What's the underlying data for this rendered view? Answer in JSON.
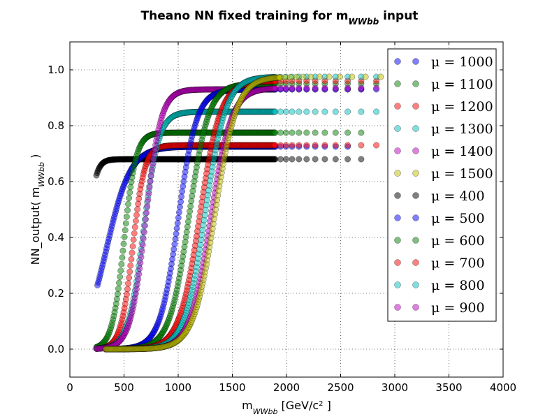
{
  "chart_data": {
    "type": "scatter",
    "title": "Theano NN fixed training for m",
    "title_sub": "WWbb",
    "title_suffix": " input",
    "xlabel": "m",
    "xlabel_sub": "WWbb",
    "xlabel_suffix": " [GeV/c",
    "xlabel_sup": "2",
    "xlabel_end": " ]",
    "ylabel": "NN_output( m",
    "ylabel_sub": "WWbb",
    "ylabel_suffix": " )",
    "xlim": [
      0,
      4000
    ],
    "ylim": [
      -0.1,
      1.1
    ],
    "xticks": [
      "0",
      "500",
      "1000",
      "1500",
      "2000",
      "2500",
      "3000",
      "3500",
      "4000"
    ],
    "yticks": [
      "0.0",
      "0.2",
      "0.4",
      "0.6",
      "0.8",
      "1.0"
    ],
    "grid": true,
    "legend_position": "upper-right",
    "series": [
      {
        "name": "μ = 1000",
        "color": "#0000ff",
        "mid": 1000,
        "plateau": 0.93,
        "width": 85,
        "xmin": 330,
        "xmax": 3050,
        "floor": 0.0
      },
      {
        "name": "μ = 1100",
        "color": "#008000",
        "mid": 1100,
        "plateau": 0.95,
        "width": 90,
        "xmin": 330,
        "xmax": 3000,
        "floor": 0.0
      },
      {
        "name": "μ = 1200",
        "color": "#ff0000",
        "mid": 1200,
        "plateau": 0.96,
        "width": 95,
        "xmin": 330,
        "xmax": 3050,
        "floor": 0.0
      },
      {
        "name": "μ = 1300",
        "color": "#00bfbf",
        "mid": 1250,
        "plateau": 0.975,
        "width": 95,
        "xmin": 330,
        "xmax": 3300,
        "floor": 0.0
      },
      {
        "name": "μ = 1400",
        "color": "#bf00bf",
        "mid": 1300,
        "plateau": 0.935,
        "width": 95,
        "xmin": 330,
        "xmax": 3400,
        "floor": 0.0
      },
      {
        "name": "μ = 1500",
        "color": "#bfbf00",
        "mid": 1340,
        "plateau": 0.975,
        "width": 100,
        "xmin": 330,
        "xmax": 3900,
        "floor": 0.0
      },
      {
        "name": "μ = 400",
        "color": "#000000",
        "mid": 150,
        "plateau": 0.68,
        "width": 40,
        "xmin": 245,
        "xmax": 2700,
        "floor": 0.0
      },
      {
        "name": "μ = 500",
        "color": "#0000ff",
        "mid": 340,
        "plateau": 0.725,
        "width": 110,
        "xmin": 255,
        "xmax": 2600,
        "floor": 0.0
      },
      {
        "name": "μ = 600",
        "color": "#008000",
        "mid": 500,
        "plateau": 0.775,
        "width": 55,
        "xmin": 245,
        "xmax": 2800,
        "floor": 0.0
      },
      {
        "name": "μ = 700",
        "color": "#ff0000",
        "mid": 580,
        "plateau": 0.73,
        "width": 55,
        "xmin": 245,
        "xmax": 3050,
        "floor": 0.0
      },
      {
        "name": "μ = 800",
        "color": "#00bfbf",
        "mid": 680,
        "plateau": 0.85,
        "width": 70,
        "xmin": 245,
        "xmax": 3950,
        "floor": 0.0
      },
      {
        "name": "μ = 900",
        "color": "#bf00bf",
        "mid": 700,
        "plateau": 0.93,
        "width": 70,
        "xmin": 245,
        "xmax": 2800,
        "floor": 0.0
      }
    ]
  }
}
